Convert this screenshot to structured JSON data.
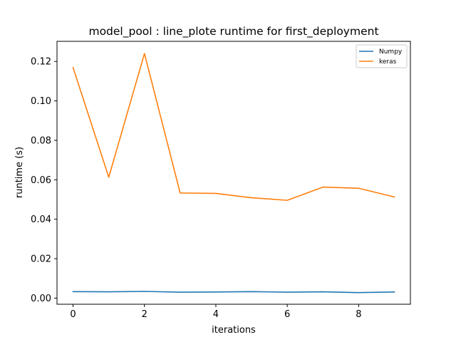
{
  "chart_data": {
    "type": "line",
    "title": "model_pool : line_plote runtime  for first_deployment",
    "xlabel": "iterations",
    "ylabel": "runtime (s)",
    "xlim": [
      -0.45,
      9.45
    ],
    "ylim": [
      -0.0031,
      0.1302
    ],
    "xticks": [
      0,
      2,
      4,
      6,
      8
    ],
    "xtick_labels": [
      "0",
      "2",
      "4",
      "6",
      "8"
    ],
    "yticks": [
      0.0,
      0.02,
      0.04,
      0.06,
      0.08,
      0.1,
      0.12
    ],
    "ytick_labels": [
      "0.00",
      "0.02",
      "0.04",
      "0.06",
      "0.08",
      "0.10",
      "0.12"
    ],
    "grid": false,
    "legend_position": "top-right",
    "x": [
      0,
      1,
      2,
      3,
      4,
      5,
      6,
      7,
      8,
      9
    ],
    "series": [
      {
        "name": "Numpy",
        "color": "#1f77b4",
        "values": [
          0.0033,
          0.0032,
          0.0034,
          0.003,
          0.0031,
          0.0033,
          0.003,
          0.0032,
          0.0028,
          0.0031
        ]
      },
      {
        "name": "keras",
        "color": "#ff7f0e",
        "values": [
          0.1169,
          0.0613,
          0.124,
          0.0533,
          0.0531,
          0.0509,
          0.0496,
          0.0563,
          0.0557,
          0.0513
        ]
      }
    ]
  }
}
